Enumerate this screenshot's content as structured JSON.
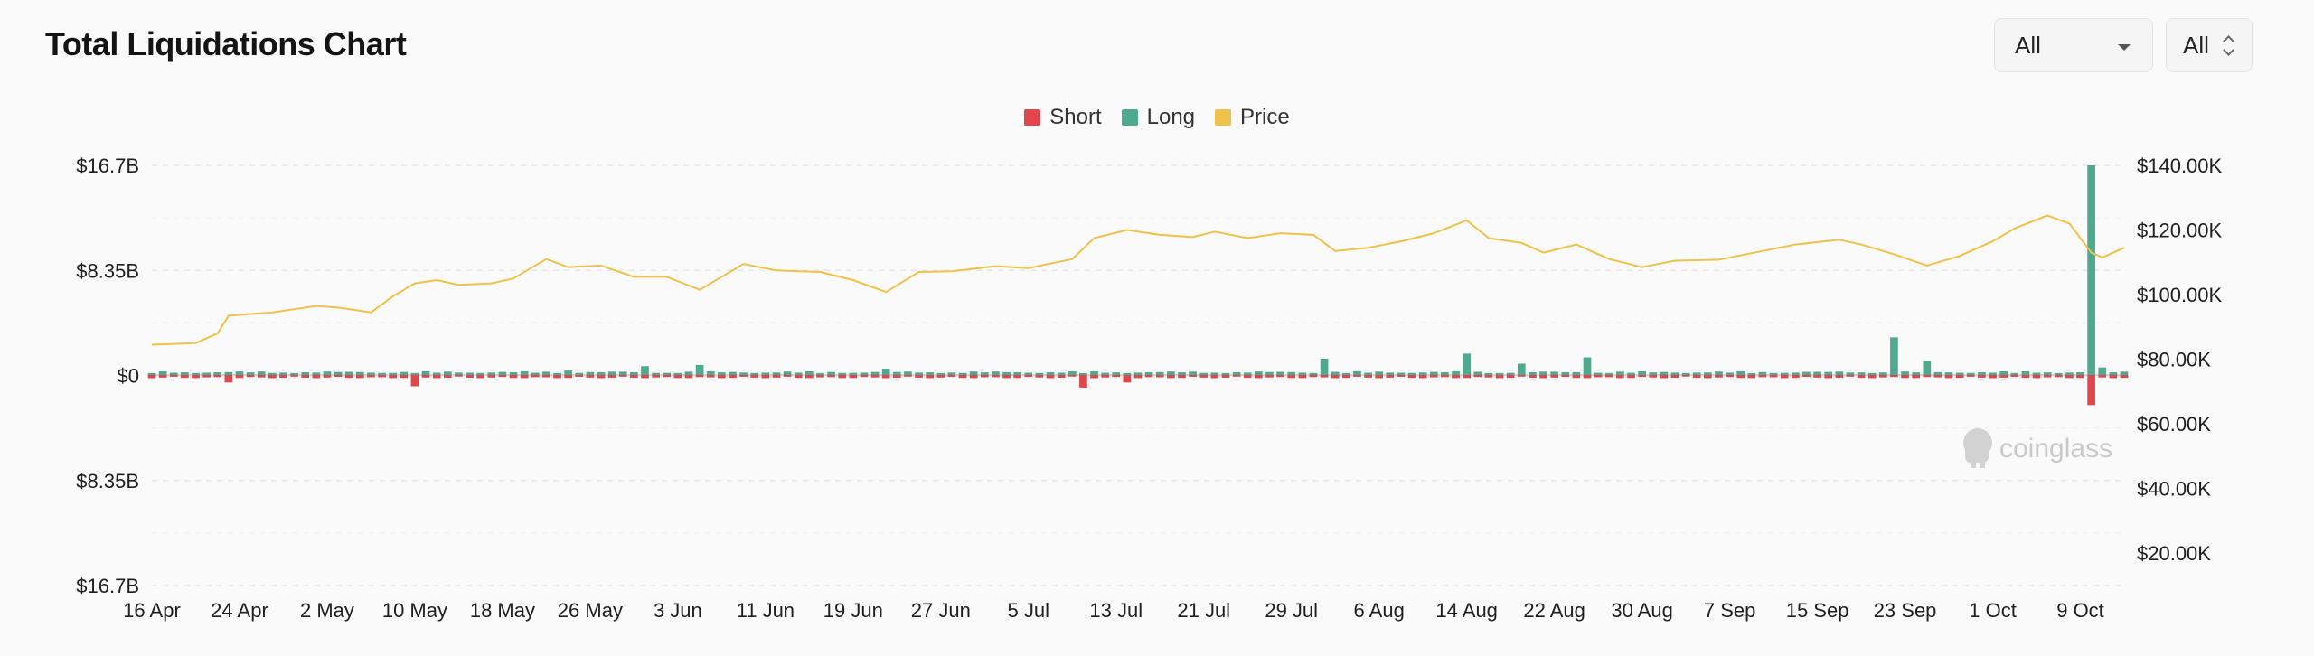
{
  "header": {
    "title": "Total Liquidations Chart",
    "range_select": "All",
    "exchange_select": "All"
  },
  "watermark": "coinglass",
  "colors": {
    "short": "#e0474c",
    "long": "#4fa98e",
    "price": "#f0c14b"
  },
  "chart_data": {
    "type": "bar",
    "title": "Total Liquidations Chart",
    "legend": [
      {
        "label": "Short",
        "color": "#e0474c",
        "icon": "red-square"
      },
      {
        "label": "Long",
        "color": "#4fa98e",
        "icon": "green-square"
      },
      {
        "label": "Price",
        "color": "#f0c14b",
        "icon": "yellow-square"
      }
    ],
    "legend_position": "top-center",
    "grid": true,
    "left_axis": {
      "ticks": [
        "$16.7B",
        "$8.35B",
        "$0",
        "$8.35B",
        "$16.7B"
      ],
      "range_billions": [
        -16.7,
        16.7
      ]
    },
    "right_axis": {
      "ticks": [
        "$140.00K",
        "$120.00K",
        "$100.00K",
        "$80.00K",
        "$60.00K",
        "$40.00K",
        "$20.00K"
      ],
      "range_thousands": [
        10,
        140
      ]
    },
    "x_ticks": [
      "16 Apr",
      "24 Apr",
      "2 May",
      "10 May",
      "18 May",
      "26 May",
      "3 Jun",
      "11 Jun",
      "19 Jun",
      "27 Jun",
      "5 Jul",
      "13 Jul",
      "21 Jul",
      "29 Jul",
      "6 Aug",
      "14 Aug",
      "22 Aug",
      "30 Aug",
      "7 Sep",
      "15 Sep",
      "23 Sep",
      "1 Oct",
      "9 Oct"
    ],
    "x_start": "2025-04-16",
    "x_end": "2025-10-13",
    "series": [
      {
        "name": "Long",
        "unit": "billion USD",
        "spikes": [
          {
            "x": "2025-05-24",
            "value": 0.35
          },
          {
            "x": "2025-05-31",
            "value": 0.7
          },
          {
            "x": "2025-06-05",
            "value": 0.8
          },
          {
            "x": "2025-06-22",
            "value": 0.5
          },
          {
            "x": "2025-08-01",
            "value": 1.3
          },
          {
            "x": "2025-08-14",
            "value": 1.7
          },
          {
            "x": "2025-08-19",
            "value": 0.9
          },
          {
            "x": "2025-08-25",
            "value": 1.4
          },
          {
            "x": "2025-09-22",
            "value": 3.0
          },
          {
            "x": "2025-09-25",
            "value": 1.1
          },
          {
            "x": "2025-10-10",
            "value": 16.7
          },
          {
            "x": "2025-10-11",
            "value": 0.6
          }
        ],
        "typical": 0.3
      },
      {
        "name": "Short",
        "unit": "billion USD",
        "spikes": [
          {
            "x": "2025-04-23",
            "value": 0.6
          },
          {
            "x": "2025-05-10",
            "value": 0.9
          },
          {
            "x": "2025-07-10",
            "value": 1.0
          },
          {
            "x": "2025-07-14",
            "value": 0.6
          },
          {
            "x": "2025-10-10",
            "value": 2.4
          }
        ],
        "typical": 0.25
      },
      {
        "name": "Price",
        "unit": "thousand USD",
        "points": [
          [
            "2025-04-16",
            84.5
          ],
          [
            "2025-04-20",
            85.0
          ],
          [
            "2025-04-22",
            88.0
          ],
          [
            "2025-04-23",
            93.5
          ],
          [
            "2025-04-27",
            94.5
          ],
          [
            "2025-05-01",
            96.5
          ],
          [
            "2025-05-03",
            96.0
          ],
          [
            "2025-05-06",
            94.5
          ],
          [
            "2025-05-08",
            99.5
          ],
          [
            "2025-05-10",
            103.5
          ],
          [
            "2025-05-12",
            104.5
          ],
          [
            "2025-05-14",
            103.0
          ],
          [
            "2025-05-17",
            103.5
          ],
          [
            "2025-05-19",
            105.0
          ],
          [
            "2025-05-22",
            111.0
          ],
          [
            "2025-05-24",
            108.5
          ],
          [
            "2025-05-27",
            109.0
          ],
          [
            "2025-05-30",
            105.5
          ],
          [
            "2025-06-02",
            105.5
          ],
          [
            "2025-06-05",
            101.5
          ],
          [
            "2025-06-09",
            109.5
          ],
          [
            "2025-06-12",
            107.5
          ],
          [
            "2025-06-16",
            107.0
          ],
          [
            "2025-06-19",
            104.5
          ],
          [
            "2025-06-22",
            100.8
          ],
          [
            "2025-06-25",
            107.0
          ],
          [
            "2025-06-28",
            107.2
          ],
          [
            "2025-07-02",
            108.8
          ],
          [
            "2025-07-05",
            108.2
          ],
          [
            "2025-07-09",
            111.0
          ],
          [
            "2025-07-11",
            117.5
          ],
          [
            "2025-07-14",
            120.0
          ],
          [
            "2025-07-17",
            118.5
          ],
          [
            "2025-07-20",
            117.8
          ],
          [
            "2025-07-22",
            119.5
          ],
          [
            "2025-07-25",
            117.5
          ],
          [
            "2025-07-28",
            119.0
          ],
          [
            "2025-07-31",
            118.5
          ],
          [
            "2025-08-02",
            113.5
          ],
          [
            "2025-08-05",
            114.5
          ],
          [
            "2025-08-08",
            116.5
          ],
          [
            "2025-08-11",
            119.0
          ],
          [
            "2025-08-14",
            123.0
          ],
          [
            "2025-08-16",
            117.5
          ],
          [
            "2025-08-19",
            116.0
          ],
          [
            "2025-08-21",
            113.0
          ],
          [
            "2025-08-24",
            115.5
          ],
          [
            "2025-08-27",
            111.0
          ],
          [
            "2025-08-30",
            108.5
          ],
          [
            "2025-09-02",
            110.5
          ],
          [
            "2025-09-06",
            110.8
          ],
          [
            "2025-09-10",
            113.5
          ],
          [
            "2025-09-13",
            115.5
          ],
          [
            "2025-09-17",
            117.0
          ],
          [
            "2025-09-19",
            115.5
          ],
          [
            "2025-09-22",
            112.5
          ],
          [
            "2025-09-25",
            109.0
          ],
          [
            "2025-09-28",
            112.0
          ],
          [
            "2025-10-01",
            116.5
          ],
          [
            "2025-10-03",
            120.5
          ],
          [
            "2025-10-06",
            124.5
          ],
          [
            "2025-10-08",
            122.0
          ],
          [
            "2025-10-10",
            113.0
          ],
          [
            "2025-10-11",
            111.5
          ],
          [
            "2025-10-13",
            114.5
          ]
        ]
      }
    ]
  }
}
